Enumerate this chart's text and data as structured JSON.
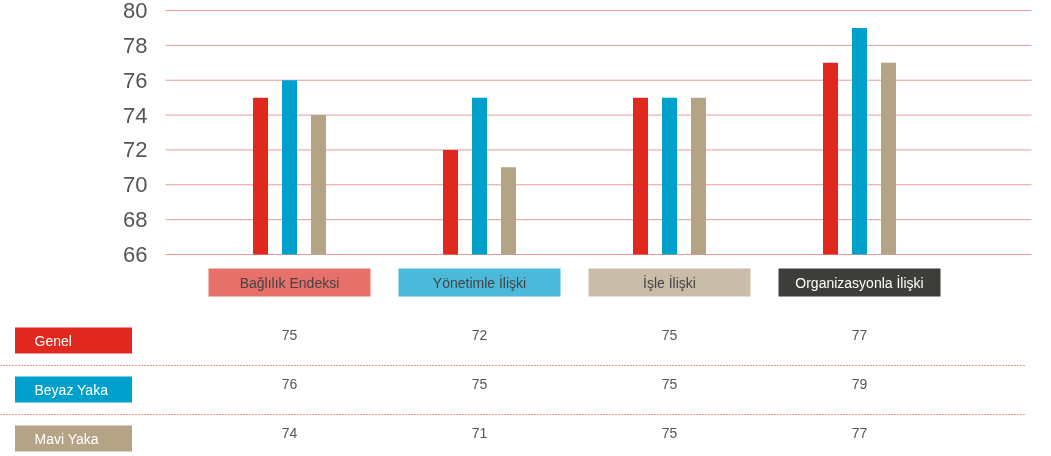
{
  "chart_data": {
    "type": "bar",
    "categories": [
      "Bağlılık Endeksi",
      "Yönetimle İlişki",
      "İşle İlişki",
      "Organizasyonla İlişki"
    ],
    "series": [
      {
        "name": "Genel",
        "color": "#e0281e",
        "values": [
          75,
          72,
          75,
          77
        ]
      },
      {
        "name": "Beyaz Yaka",
        "color": "#00a0cc",
        "values": [
          76,
          75,
          75,
          79
        ]
      },
      {
        "name": "Mavi Yaka",
        "color": "#b5a386",
        "values": [
          74,
          71,
          75,
          77
        ]
      }
    ],
    "ylim": [
      66,
      80
    ],
    "yticks": [
      66,
      68,
      70,
      72,
      74,
      76,
      78,
      80
    ],
    "grid": "y",
    "data_labels": true
  }
}
